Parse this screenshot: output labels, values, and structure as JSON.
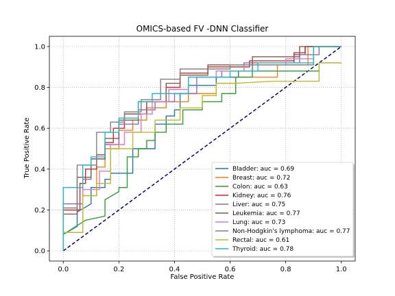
{
  "chart_data": {
    "type": "line",
    "title": "OMICS-based FV -DNN Classifier",
    "xlabel": "False Positive Rate",
    "ylabel": "True Positive Rate",
    "xlim": [
      -0.05,
      1.05
    ],
    "ylim": [
      -0.05,
      1.05
    ],
    "xticks": [
      "0.0",
      "0.2",
      "0.4",
      "0.6",
      "0.8",
      "1.0"
    ],
    "yticks": [
      "0.0",
      "0.2",
      "0.4",
      "0.6",
      "0.8",
      "1.0"
    ],
    "grid": true,
    "grid_style": "dotted",
    "legend_position": "lower right",
    "reference_line": {
      "x": [
        0,
        1
      ],
      "y": [
        0,
        1
      ],
      "color": "#000080",
      "style": "dashed"
    },
    "series": [
      {
        "name": "Bladder: auc = 0.69",
        "color": "#1f77b4",
        "x": [
          0,
          0,
          0.05,
          0.05,
          0.1,
          0.1,
          0.15,
          0.15,
          0.17,
          0.17,
          0.25,
          0.25,
          0.33,
          0.33,
          0.37,
          0.37,
          0.4,
          0.4,
          0.42,
          0.42,
          0.45,
          0.45,
          0.55,
          0.55,
          0.63,
          0.63,
          0.68,
          0.68,
          0.83,
          0.83,
          0.87,
          0.87,
          1.0
        ],
        "y": [
          0,
          0.08,
          0.12,
          0.19,
          0.23,
          0.31,
          0.31,
          0.35,
          0.35,
          0.38,
          0.38,
          0.5,
          0.5,
          0.62,
          0.62,
          0.66,
          0.66,
          0.69,
          0.69,
          0.77,
          0.77,
          0.81,
          0.81,
          0.85,
          0.85,
          0.88,
          0.88,
          0.92,
          0.92,
          0.96,
          0.96,
          1.0,
          1.0
        ]
      },
      {
        "name": "Breast: auc = 0.72",
        "color": "#ff7f0e",
        "x": [
          0,
          0,
          0.07,
          0.07,
          0.12,
          0.12,
          0.15,
          0.15,
          0.2,
          0.2,
          0.25,
          0.25,
          0.3,
          0.3,
          0.37,
          0.37,
          0.45,
          0.45,
          0.55,
          0.55,
          0.62,
          0.62,
          0.77,
          0.77,
          0.88,
          0.88,
          1.0
        ],
        "y": [
          0,
          0.09,
          0.09,
          0.27,
          0.27,
          0.41,
          0.41,
          0.5,
          0.5,
          0.59,
          0.59,
          0.64,
          0.64,
          0.7,
          0.7,
          0.73,
          0.73,
          0.77,
          0.77,
          0.82,
          0.82,
          0.85,
          0.85,
          0.91,
          0.91,
          1.0,
          1.0
        ]
      },
      {
        "name": "Colon: auc = 0.63",
        "color": "#2ca02c",
        "x": [
          0,
          0,
          0.08,
          0.08,
          0.15,
          0.15,
          0.2,
          0.2,
          0.23,
          0.23,
          0.27,
          0.27,
          0.3,
          0.3,
          0.33,
          0.33,
          0.37,
          0.37,
          0.43,
          0.43,
          0.5,
          0.5,
          0.57,
          0.57,
          0.62,
          0.62,
          0.68,
          0.68,
          0.92,
          0.92,
          1.0
        ],
        "y": [
          0,
          0.08,
          0.15,
          0.15,
          0.17,
          0.25,
          0.29,
          0.31,
          0.31,
          0.46,
          0.46,
          0.5,
          0.5,
          0.54,
          0.54,
          0.58,
          0.58,
          0.62,
          0.62,
          0.69,
          0.69,
          0.73,
          0.73,
          0.77,
          0.77,
          0.85,
          0.85,
          0.88,
          0.88,
          0.92,
          0.92
        ]
      },
      {
        "name": "Kidney: auc = 0.76",
        "color": "#d62728",
        "x": [
          0,
          0,
          0.06,
          0.06,
          0.08,
          0.08,
          0.12,
          0.12,
          0.15,
          0.15,
          0.18,
          0.18,
          0.22,
          0.22,
          0.3,
          0.3,
          0.37,
          0.37,
          0.42,
          0.42,
          0.52,
          0.52,
          0.67,
          0.67,
          0.83,
          0.83,
          0.87,
          0.87,
          1.0
        ],
        "y": [
          0,
          0.2,
          0.2,
          0.33,
          0.33,
          0.4,
          0.4,
          0.47,
          0.47,
          0.53,
          0.53,
          0.6,
          0.6,
          0.67,
          0.67,
          0.73,
          0.73,
          0.8,
          0.8,
          0.87,
          0.87,
          0.9,
          0.9,
          0.93,
          0.93,
          0.97,
          0.97,
          1.0,
          1.0
        ]
      },
      {
        "name": "Liver: auc = 0.75",
        "color": "#9467bd",
        "x": [
          0,
          0,
          0.07,
          0.07,
          0.1,
          0.1,
          0.15,
          0.15,
          0.2,
          0.2,
          0.27,
          0.27,
          0.33,
          0.33,
          0.4,
          0.4,
          0.48,
          0.48,
          0.57,
          0.57,
          0.65,
          0.65,
          0.85,
          0.85,
          0.92,
          0.92,
          1.0
        ],
        "y": [
          0,
          0.23,
          0.23,
          0.35,
          0.35,
          0.45,
          0.45,
          0.52,
          0.52,
          0.62,
          0.62,
          0.69,
          0.69,
          0.73,
          0.73,
          0.77,
          0.77,
          0.85,
          0.85,
          0.88,
          0.88,
          0.92,
          0.92,
          0.96,
          0.96,
          1.0,
          1.0
        ]
      },
      {
        "name": "Leukemia: auc = 0.77",
        "color": "#8c564b",
        "x": [
          0,
          0,
          0.05,
          0.05,
          0.1,
          0.1,
          0.15,
          0.15,
          0.2,
          0.2,
          0.27,
          0.27,
          0.37,
          0.37,
          0.42,
          0.42,
          0.52,
          0.52,
          0.68,
          0.68,
          0.85,
          0.85,
          1.0
        ],
        "y": [
          0,
          0.18,
          0.18,
          0.36,
          0.36,
          0.45,
          0.45,
          0.55,
          0.55,
          0.64,
          0.64,
          0.73,
          0.73,
          0.82,
          0.82,
          0.86,
          0.86,
          0.91,
          0.91,
          0.95,
          0.95,
          1.0,
          1.0
        ]
      },
      {
        "name": "Lung: auc = 0.73",
        "color": "#e377c2",
        "x": [
          0,
          0,
          0.07,
          0.07,
          0.13,
          0.13,
          0.17,
          0.17,
          0.22,
          0.22,
          0.28,
          0.28,
          0.32,
          0.32,
          0.38,
          0.38,
          0.45,
          0.45,
          0.55,
          0.55,
          0.65,
          0.65,
          0.8,
          0.8,
          0.9,
          0.9,
          1.0
        ],
        "y": [
          0,
          0.09,
          0.09,
          0.3,
          0.3,
          0.39,
          0.39,
          0.52,
          0.52,
          0.58,
          0.58,
          0.67,
          0.67,
          0.73,
          0.73,
          0.79,
          0.79,
          0.85,
          0.85,
          0.88,
          0.88,
          0.91,
          0.91,
          0.94,
          0.94,
          1.0,
          1.0
        ]
      },
      {
        "name": "Non-Hodgkin's lymphoma: auc = 0.77",
        "color": "#7f7f7f",
        "x": [
          0,
          0,
          0.05,
          0.05,
          0.12,
          0.12,
          0.17,
          0.17,
          0.22,
          0.22,
          0.28,
          0.28,
          0.35,
          0.35,
          0.42,
          0.42,
          0.5,
          0.5,
          0.6,
          0.6,
          0.68,
          0.68,
          0.9,
          0.9,
          1.0
        ],
        "y": [
          0,
          0.21,
          0.21,
          0.42,
          0.42,
          0.58,
          0.58,
          0.63,
          0.63,
          0.68,
          0.68,
          0.74,
          0.74,
          0.84,
          0.84,
          0.89,
          0.89,
          0.89,
          0.89,
          0.91,
          0.91,
          0.91,
          0.91,
          1.0,
          1.0
        ]
      },
      {
        "name": "Rectal: auc = 0.61",
        "color": "#bcbd22",
        "x": [
          0,
          0,
          0.07,
          0.07,
          0.12,
          0.12,
          0.17,
          0.17,
          0.25,
          0.25,
          0.33,
          0.33,
          0.42,
          0.42,
          0.5,
          0.5,
          0.55,
          0.55,
          0.62,
          0.62,
          0.75,
          0.75,
          0.92,
          0.92,
          1.0
        ],
        "y": [
          0,
          0.09,
          0.09,
          0.27,
          0.27,
          0.33,
          0.33,
          0.5,
          0.5,
          0.58,
          0.58,
          0.64,
          0.64,
          0.7,
          0.7,
          0.76,
          0.76,
          0.82,
          0.82,
          0.82,
          0.83,
          0.83,
          0.83,
          0.92,
          0.92
        ]
      },
      {
        "name": "Thyroid: auc = 0.78",
        "color": "#17becf",
        "x": [
          0,
          0,
          0.07,
          0.07,
          0.1,
          0.1,
          0.15,
          0.15,
          0.2,
          0.2,
          0.27,
          0.27,
          0.32,
          0.32,
          0.45,
          0.45,
          0.6,
          0.6,
          0.7,
          0.7,
          0.9,
          0.9,
          1.0
        ],
        "y": [
          0,
          0.31,
          0.31,
          0.42,
          0.42,
          0.46,
          0.46,
          0.58,
          0.58,
          0.65,
          0.65,
          0.73,
          0.73,
          0.77,
          0.77,
          0.85,
          0.85,
          0.88,
          0.88,
          0.92,
          0.92,
          1.0,
          1.0
        ]
      }
    ]
  }
}
